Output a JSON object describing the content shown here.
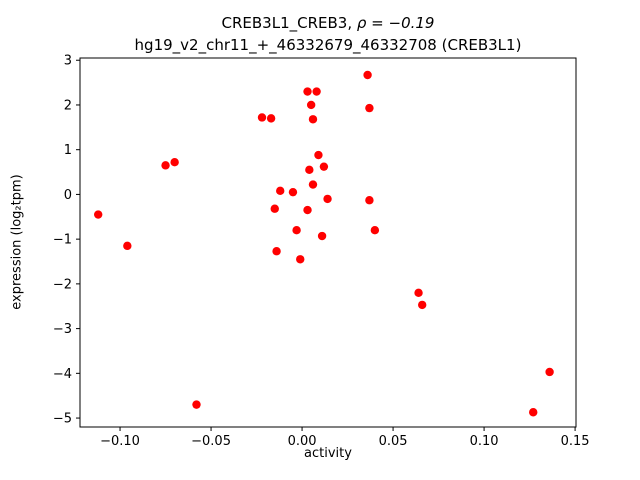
{
  "chart_data": {
    "type": "scatter",
    "title_prefix": "CREB3L1_CREB3, ",
    "title_rho": "ρ = −0.19",
    "title_line2": "hg19_v2_chr11_+_46332679_46332708 (CREB3L1)",
    "xlabel": "activity",
    "ylabel": "expression (log₂tpm)",
    "xlim": [
      -0.122,
      0.1505
    ],
    "ylim": [
      -5.2,
      3.05
    ],
    "marker_color": "#ff0000",
    "grid": false,
    "legend": "none",
    "xticks": [
      {
        "value": -0.1,
        "label": "−0.10"
      },
      {
        "value": -0.05,
        "label": "−0.05"
      },
      {
        "value": 0.0,
        "label": "0.00"
      },
      {
        "value": 0.05,
        "label": "0.05"
      },
      {
        "value": 0.1,
        "label": "0.10"
      },
      {
        "value": 0.15,
        "label": "0.15"
      }
    ],
    "yticks": [
      {
        "value": 3,
        "label": "3"
      },
      {
        "value": 2,
        "label": "2"
      },
      {
        "value": 1,
        "label": "1"
      },
      {
        "value": 0,
        "label": "0"
      },
      {
        "value": -1,
        "label": "−1"
      },
      {
        "value": -2,
        "label": "−2"
      },
      {
        "value": -3,
        "label": "−3"
      },
      {
        "value": -4,
        "label": "−4"
      },
      {
        "value": -5,
        "label": "−5"
      }
    ],
    "points": [
      [
        -0.112,
        -0.45
      ],
      [
        -0.096,
        -1.15
      ],
      [
        -0.075,
        0.65
      ],
      [
        -0.07,
        0.72
      ],
      [
        -0.058,
        -4.7
      ],
      [
        -0.022,
        1.72
      ],
      [
        -0.017,
        1.7
      ],
      [
        -0.015,
        -0.32
      ],
      [
        -0.014,
        -1.27
      ],
      [
        -0.012,
        0.08
      ],
      [
        -0.005,
        0.05
      ],
      [
        -0.003,
        -0.8
      ],
      [
        -0.001,
        -1.45
      ],
      [
        0.003,
        2.3
      ],
      [
        0.008,
        2.3
      ],
      [
        0.005,
        2.0
      ],
      [
        0.006,
        1.68
      ],
      [
        0.004,
        0.55
      ],
      [
        0.006,
        0.22
      ],
      [
        0.003,
        -0.35
      ],
      [
        0.009,
        0.88
      ],
      [
        0.012,
        0.62
      ],
      [
        0.014,
        -0.1
      ],
      [
        0.011,
        -0.93
      ],
      [
        0.036,
        2.67
      ],
      [
        0.037,
        1.93
      ],
      [
        0.037,
        -0.13
      ],
      [
        0.04,
        -0.8
      ],
      [
        0.064,
        -2.2
      ],
      [
        0.066,
        -2.47
      ],
      [
        0.127,
        -4.87
      ],
      [
        0.136,
        -3.97
      ]
    ]
  }
}
